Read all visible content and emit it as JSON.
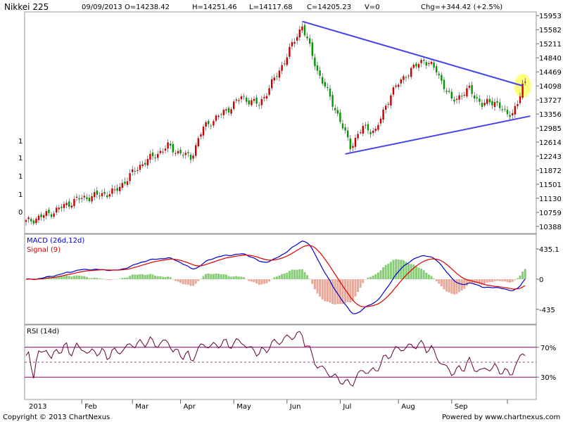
{
  "header": {
    "title": "Nikkei 225",
    "date": "09/09/2013",
    "open": "O=14238.42",
    "high": "H=14251.46",
    "low": "L=14117.68",
    "close": "C=14205.23",
    "volume": "V=0",
    "change": "Chg=+344.42 (+2.5%)"
  },
  "footer": {
    "copyright": "Copyright © 2013 ChartNexus",
    "powered": "Powered by www.chartnexus.com"
  },
  "colors": {
    "up": "#cc0000",
    "down": "#009900",
    "trendline": "#4444ee",
    "highlight": "#ffff66",
    "macd_line": "#0000cc",
    "signal_line": "#dd0000",
    "hist_pos": "#88cc77",
    "hist_neg": "#e8a89a",
    "rsi_line": "#660033",
    "rsi_band": "#880066"
  },
  "chart_data": [
    {
      "type": "candlestick",
      "y_ticks": [
        "15953",
        "15582",
        "15211",
        "14840",
        "14469",
        "14098",
        "13727",
        "13356",
        "12985",
        "12614",
        "12243",
        "11872",
        "11501",
        "11130",
        "10759",
        "10388"
      ],
      "ylim": [
        10200,
        16050
      ],
      "left_axis_labels": [
        "1",
        "1",
        "1",
        "1",
        "0",
        "0"
      ],
      "months": [
        "2013",
        "Feb",
        "Mar",
        "Apr",
        "May",
        "Jun",
        "Jul",
        "Aug",
        "Sep"
      ],
      "anchors": [
        {
          "day": 0,
          "close": 10500
        },
        {
          "day": 10,
          "close": 10750
        },
        {
          "day": 20,
          "close": 11100
        },
        {
          "day": 35,
          "close": 11300
        },
        {
          "day": 45,
          "close": 12000
        },
        {
          "day": 56,
          "close": 12500
        },
        {
          "day": 60,
          "close": 12350
        },
        {
          "day": 65,
          "close": 12200
        },
        {
          "day": 70,
          "close": 13000
        },
        {
          "day": 80,
          "close": 13500
        },
        {
          "day": 85,
          "close": 13800
        },
        {
          "day": 92,
          "close": 13600
        },
        {
          "day": 100,
          "close": 14500
        },
        {
          "day": 109,
          "close": 15700
        },
        {
          "day": 115,
          "close": 14500
        },
        {
          "day": 122,
          "close": 13500
        },
        {
          "day": 128,
          "close": 12500
        },
        {
          "day": 133,
          "close": 13000
        },
        {
          "day": 138,
          "close": 12900
        },
        {
          "day": 144,
          "close": 13900
        },
        {
          "day": 150,
          "close": 14400
        },
        {
          "day": 157,
          "close": 14800
        },
        {
          "day": 162,
          "close": 14500
        },
        {
          "day": 168,
          "close": 13700
        },
        {
          "day": 175,
          "close": 14000
        },
        {
          "day": 180,
          "close": 13600
        },
        {
          "day": 185,
          "close": 13700
        },
        {
          "day": 190,
          "close": 13300
        },
        {
          "day": 194,
          "close": 13600
        },
        {
          "day": 196,
          "close": 14100
        },
        {
          "day": 197,
          "close": 14205
        }
      ],
      "trendlines": [
        {
          "from": {
            "day": 109,
            "value": 15800
          },
          "to": {
            "day": 196,
            "value": 14100
          }
        },
        {
          "from": {
            "day": 126,
            "value": 12300
          },
          "to": {
            "day": 199,
            "value": 13300
          }
        }
      ],
      "highlight": {
        "day": 196,
        "value": 14100
      }
    },
    {
      "type": "line",
      "title": "MACD (26d,12d)",
      "series": [
        {
          "name": "MACD (26d,12d)"
        },
        {
          "name": "Signal (9)"
        }
      ],
      "y_ticks": [
        "435.1",
        "0",
        "-435"
      ],
      "ylim": [
        -650,
        650
      ]
    },
    {
      "type": "line",
      "title": "RSI (14d)",
      "series": [
        {
          "name": "RSI (14d)"
        }
      ],
      "y_ticks": [
        "70%",
        "30%"
      ],
      "ylim": [
        0,
        100
      ]
    }
  ]
}
